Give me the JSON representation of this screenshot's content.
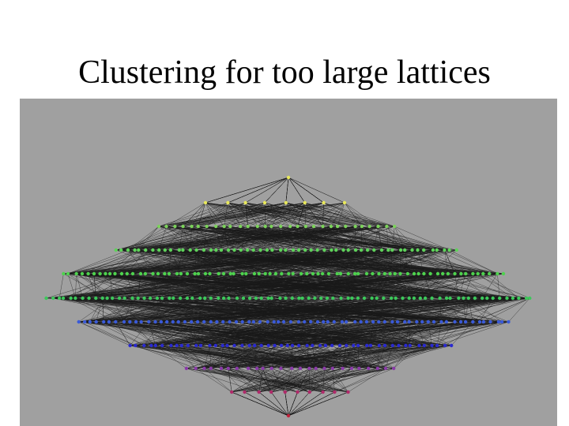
{
  "title": "Clustering for too large lattices"
}
